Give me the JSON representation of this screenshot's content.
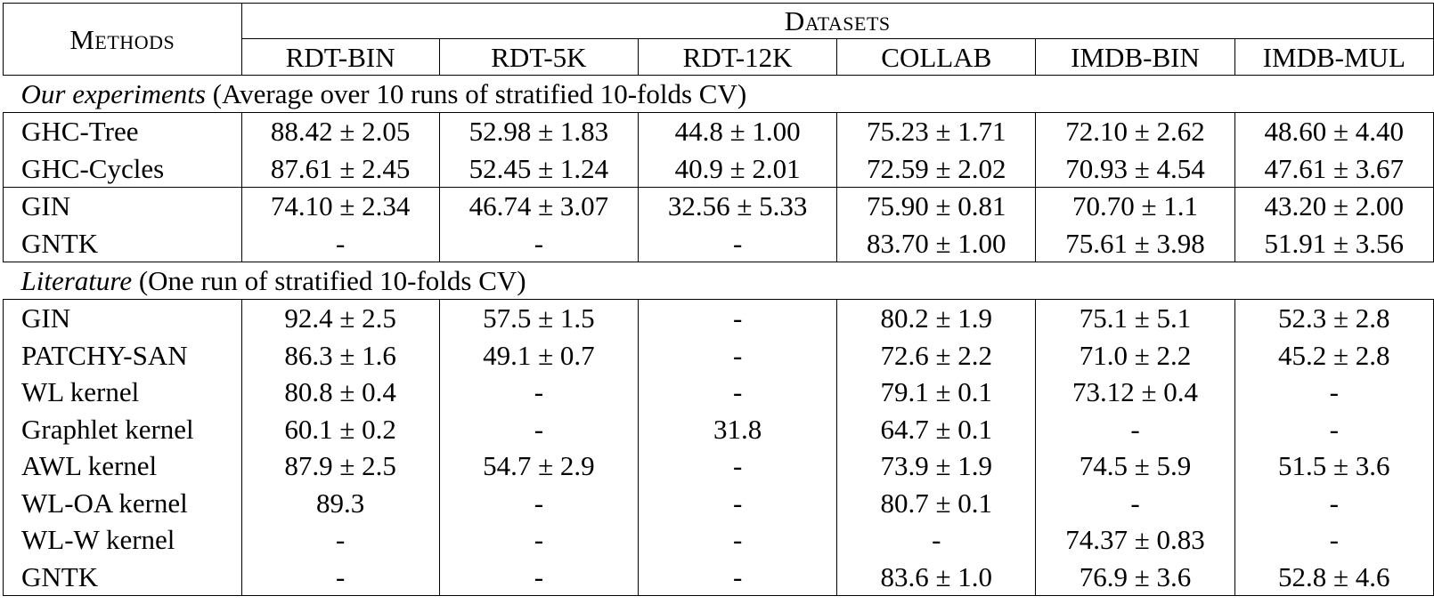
{
  "header": {
    "methods": "Methods",
    "datasets": "Datasets",
    "columns": [
      "RDT-BIN",
      "RDT-5K",
      "RDT-12K",
      "COLLAB",
      "IMDB-BIN",
      "IMDB-MUL"
    ]
  },
  "sections": {
    "ours": {
      "title": "Our experiments",
      "desc": " (Average over 10 runs of stratified 10-folds CV)"
    },
    "lit": {
      "title": "Literature",
      "desc": " (One run of stratified 10-folds CV)"
    }
  },
  "ours_a": [
    {
      "method": "GHC-Tree",
      "vals": [
        "88.42 ± 2.05",
        "52.98 ± 1.83",
        "44.8 ± 1.00",
        "75.23 ± 1.71",
        "72.10 ± 2.62",
        "48.60 ± 4.40"
      ]
    },
    {
      "method": "GHC-Cycles",
      "vals": [
        "87.61 ± 2.45",
        "52.45 ± 1.24",
        "40.9 ± 2.01",
        "72.59 ± 2.02",
        "70.93 ± 4.54",
        "47.61 ± 3.67"
      ]
    }
  ],
  "ours_b": [
    {
      "method": "GIN",
      "vals": [
        "74.10 ± 2.34",
        "46.74 ± 3.07",
        "32.56 ± 5.33",
        "75.90 ± 0.81",
        "70.70 ± 1.1",
        "43.20 ± 2.00"
      ]
    },
    {
      "method": "GNTK",
      "vals": [
        "-",
        "-",
        "-",
        "83.70 ± 1.00",
        "75.61 ± 3.98",
        "51.91 ± 3.56"
      ]
    }
  ],
  "lit": [
    {
      "method": "GIN",
      "vals": [
        "92.4 ± 2.5",
        "57.5 ± 1.5",
        "-",
        "80.2 ± 1.9",
        "75.1 ± 5.1",
        "52.3 ± 2.8"
      ]
    },
    {
      "method": "PATCHY-SAN",
      "vals": [
        "86.3 ± 1.6",
        "49.1 ± 0.7",
        "-",
        "72.6 ± 2.2",
        "71.0 ± 2.2",
        "45.2 ± 2.8"
      ]
    },
    {
      "method": "WL kernel",
      "vals": [
        "80.8 ± 0.4",
        "-",
        "-",
        "79.1 ± 0.1",
        "73.12 ± 0.4",
        "-"
      ]
    },
    {
      "method": "Graphlet kernel",
      "vals": [
        "60.1 ± 0.2",
        "-",
        "31.8",
        "64.7 ± 0.1",
        "-",
        "-"
      ]
    },
    {
      "method": "AWL kernel",
      "vals": [
        "87.9 ± 2.5",
        "54.7 ± 2.9",
        "-",
        "73.9 ± 1.9",
        "74.5 ± 5.9",
        "51.5 ± 3.6"
      ]
    },
    {
      "method": "WL-OA kernel",
      "vals": [
        "89.3",
        "-",
        "-",
        "80.7 ± 0.1",
        "-",
        "-"
      ]
    },
    {
      "method": "WL-W kernel",
      "vals": [
        "-",
        "-",
        "-",
        "-",
        "74.37 ± 0.83",
        "-"
      ]
    },
    {
      "method": "GNTK",
      "vals": [
        "-",
        "-",
        "-",
        "83.6 ± 1.0",
        "76.9 ± 3.6",
        "52.8 ± 4.6"
      ]
    }
  ]
}
